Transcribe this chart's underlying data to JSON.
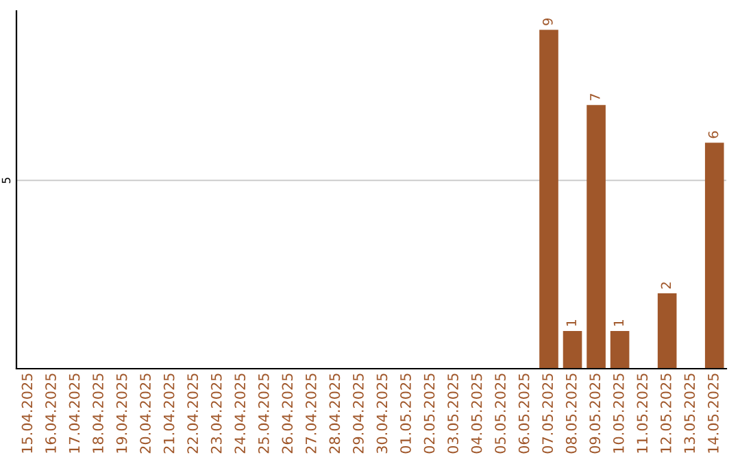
{
  "chart_data": {
    "type": "bar",
    "categories": [
      "15.04.2025",
      "16.04.2025",
      "17.04.2025",
      "18.04.2025",
      "19.04.2025",
      "20.04.2025",
      "21.04.2025",
      "22.04.2025",
      "23.04.2025",
      "24.04.2025",
      "25.04.2025",
      "26.04.2025",
      "27.04.2025",
      "28.04.2025",
      "29.04.2025",
      "30.04.2025",
      "01.05.2025",
      "02.05.2025",
      "03.05.2025",
      "04.05.2025",
      "05.05.2025",
      "06.05.2025",
      "07.05.2025",
      "08.05.2025",
      "09.05.2025",
      "10.05.2025",
      "11.05.2025",
      "12.05.2025",
      "13.05.2025",
      "14.05.2025"
    ],
    "series": [
      {
        "color": "#a0572a",
        "values": [
          null,
          null,
          null,
          null,
          null,
          null,
          null,
          null,
          null,
          null,
          null,
          null,
          null,
          null,
          null,
          null,
          null,
          null,
          null,
          null,
          null,
          null,
          9,
          1,
          7,
          1,
          null,
          2,
          null,
          6
        ],
        "value_labels": [
          null,
          null,
          null,
          null,
          null,
          null,
          null,
          null,
          null,
          null,
          null,
          null,
          null,
          null,
          null,
          null,
          null,
          null,
          null,
          null,
          null,
          null,
          "9",
          "1",
          "7",
          "1",
          null,
          "2",
          null,
          "6"
        ]
      }
    ],
    "ylim": [
      0,
      9.5
    ],
    "yticks": [
      5
    ],
    "grid": "y",
    "legend": false
  }
}
